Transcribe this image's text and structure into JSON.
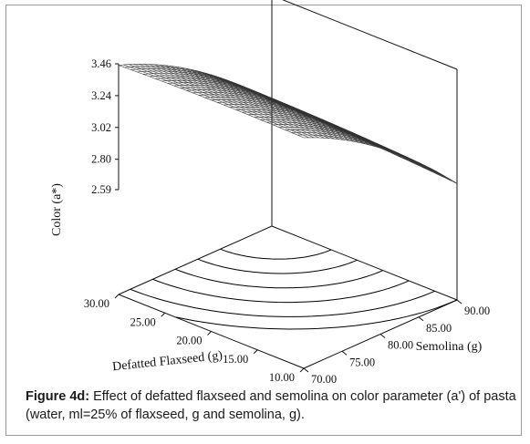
{
  "chart_data": {
    "type": "surface3d",
    "zlabel": "Color (a*)",
    "xlabel": "Defatted Flaxseed (g)",
    "ylabel": "Semolina (g)",
    "z_ticks": [
      "2.59",
      "2.80",
      "3.02",
      "3.24",
      "3.46"
    ],
    "x_ticks": [
      "10.00",
      "15.00",
      "20.00",
      "25.00",
      "30.00"
    ],
    "y_ticks": [
      "70.00",
      "75.00",
      "80.00",
      "85.00",
      "90.00"
    ],
    "x_range": [
      10,
      30
    ],
    "y_range": [
      70,
      90
    ],
    "z_range": [
      2.59,
      3.46
    ],
    "surface_corners": [
      {
        "flaxseed": 30,
        "semolina": 70,
        "color": 3.45
      },
      {
        "flaxseed": 10,
        "semolina": 70,
        "color": 3.46
      },
      {
        "flaxseed": 10,
        "semolina": 90,
        "color": 2.67
      },
      {
        "flaxseed": 30,
        "semolina": 90,
        "color": 2.73
      }
    ],
    "grid": true,
    "contours_on_floor": true
  },
  "caption": {
    "label": "Figure 4d:",
    "text": " Effect of defatted flaxseed and semolina on color parameter (a') of pasta (water, ml=25% of flaxseed, g and semolina, g)."
  },
  "colors": {
    "axis": "#111111",
    "surface_line": "#333333",
    "contour": "#000000",
    "frame": "#9a9a9a"
  }
}
